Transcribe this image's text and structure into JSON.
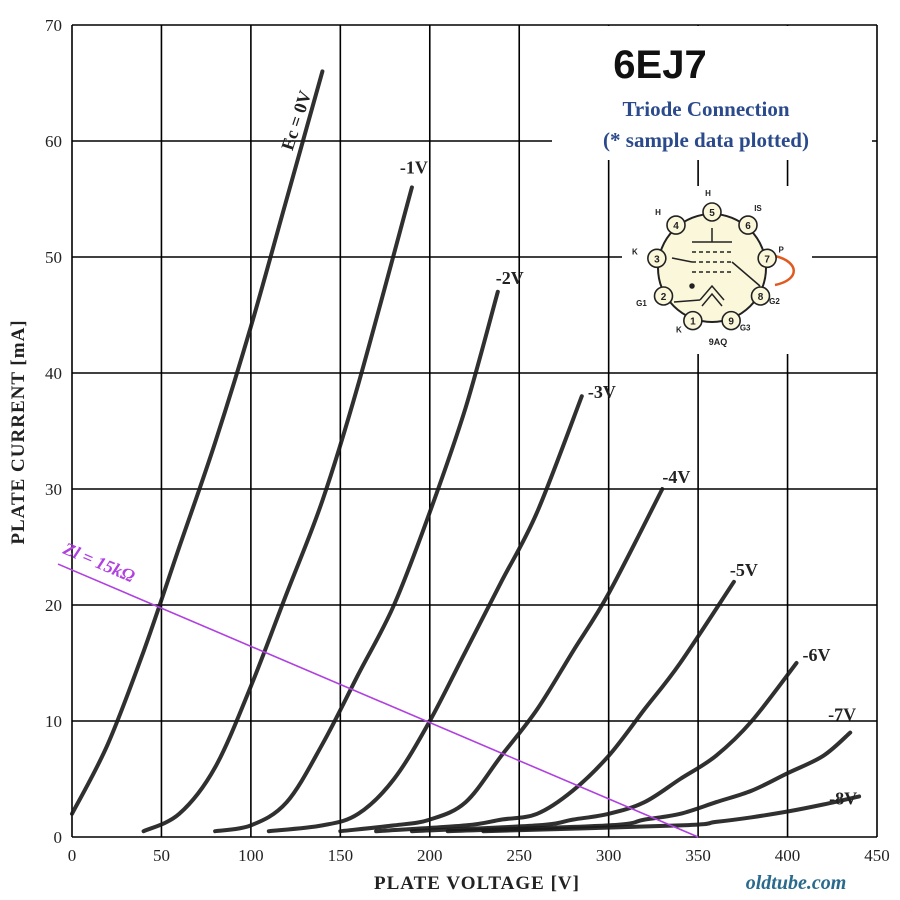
{
  "chart_data": {
    "type": "line",
    "title": "6EJ7",
    "subtitle_lines": [
      "Triode  Connection",
      "(* sample data plotted)"
    ],
    "xlabel": "PLATE  VOLTAGE [V]",
    "ylabel": "PLATE  CURRENT [mA]",
    "xlim": [
      0,
      450
    ],
    "ylim": [
      0,
      70
    ],
    "x_ticks": [
      0,
      50,
      100,
      150,
      200,
      250,
      300,
      350,
      400,
      450
    ],
    "y_ticks": [
      0,
      10,
      20,
      30,
      40,
      50,
      60,
      70
    ],
    "x_tick_labels": [
      "0",
      "50",
      "100",
      "150",
      "200",
      "250",
      "300",
      "350",
      "400",
      "450"
    ],
    "y_tick_labels": [
      "0",
      "10",
      "20",
      "30",
      "40",
      "50",
      "60",
      "70"
    ],
    "grid": true,
    "series": [
      {
        "name": "Ec = 0V",
        "x": [
          0,
          20,
          40,
          60,
          80,
          100,
          120,
          140
        ],
        "y": [
          2,
          8,
          16,
          25,
          34,
          44,
          55,
          66
        ]
      },
      {
        "name": "-1V",
        "x": [
          40,
          60,
          80,
          100,
          120,
          140,
          160,
          190
        ],
        "y": [
          0.5,
          2,
          6,
          13,
          21,
          29,
          39,
          56
        ]
      },
      {
        "name": "-2V",
        "x": [
          80,
          100,
          120,
          140,
          160,
          180,
          200,
          220,
          238
        ],
        "y": [
          0.5,
          1,
          3,
          8,
          14,
          20,
          28,
          37,
          47
        ]
      },
      {
        "name": "-3V",
        "x": [
          110,
          140,
          160,
          180,
          200,
          220,
          240,
          260,
          285
        ],
        "y": [
          0.5,
          1,
          2,
          5,
          10,
          16,
          22,
          28,
          38
        ]
      },
      {
        "name": "-4V",
        "x": [
          150,
          180,
          200,
          220,
          240,
          260,
          280,
          300,
          330
        ],
        "y": [
          0.5,
          1,
          1.5,
          3,
          7,
          11,
          16,
          21,
          30
        ]
      },
      {
        "name": "-5V",
        "x": [
          170,
          220,
          240,
          260,
          280,
          300,
          320,
          340,
          370
        ],
        "y": [
          0.5,
          1,
          1.5,
          2,
          4,
          7,
          11,
          15,
          22
        ]
      },
      {
        "name": "-6V",
        "x": [
          190,
          260,
          280,
          300,
          320,
          340,
          360,
          380,
          405
        ],
        "y": [
          0.5,
          1,
          1.5,
          2,
          3,
          5,
          7,
          10,
          15
        ]
      },
      {
        "name": "-7V",
        "x": [
          210,
          300,
          320,
          340,
          360,
          380,
          400,
          420,
          435
        ],
        "y": [
          0.5,
          1,
          1.5,
          2,
          3,
          4,
          5.5,
          7,
          9
        ]
      },
      {
        "name": "-8V",
        "x": [
          230,
          340,
          360,
          380,
          400,
          420,
          440
        ],
        "y": [
          0.5,
          1,
          1.3,
          1.7,
          2.2,
          2.8,
          3.5
        ]
      }
    ],
    "series_label_text": [
      "Ec = 0V",
      "-1V",
      "-2V",
      "-3V",
      "-4V",
      "-5V",
      "-6V",
      "-7V",
      "-8V"
    ],
    "load_line": {
      "label": "Zl = 15kΩ",
      "x": [
        -15,
        350
      ],
      "y": [
        24,
        0
      ],
      "color": "#b040e0"
    },
    "colors": {
      "curve": "#1a1a1a",
      "grid": "#000000",
      "load_line": "#b040e0",
      "subtitle": "#2a4a8c",
      "watermark": "#2a6a8c",
      "strap": "#e05a20"
    },
    "tube_base": {
      "base_code": "9AQ",
      "pins": [
        {
          "num": "1",
          "label": "K"
        },
        {
          "num": "2",
          "label": "G1"
        },
        {
          "num": "3",
          "label": "K"
        },
        {
          "num": "4",
          "label": "H"
        },
        {
          "num": "5",
          "label": "H"
        },
        {
          "num": "6",
          "label": "IS"
        },
        {
          "num": "7",
          "label": "P"
        },
        {
          "num": "8",
          "label": "G2"
        },
        {
          "num": "9",
          "label": "G3"
        }
      ]
    },
    "watermark": "oldtube.com"
  }
}
